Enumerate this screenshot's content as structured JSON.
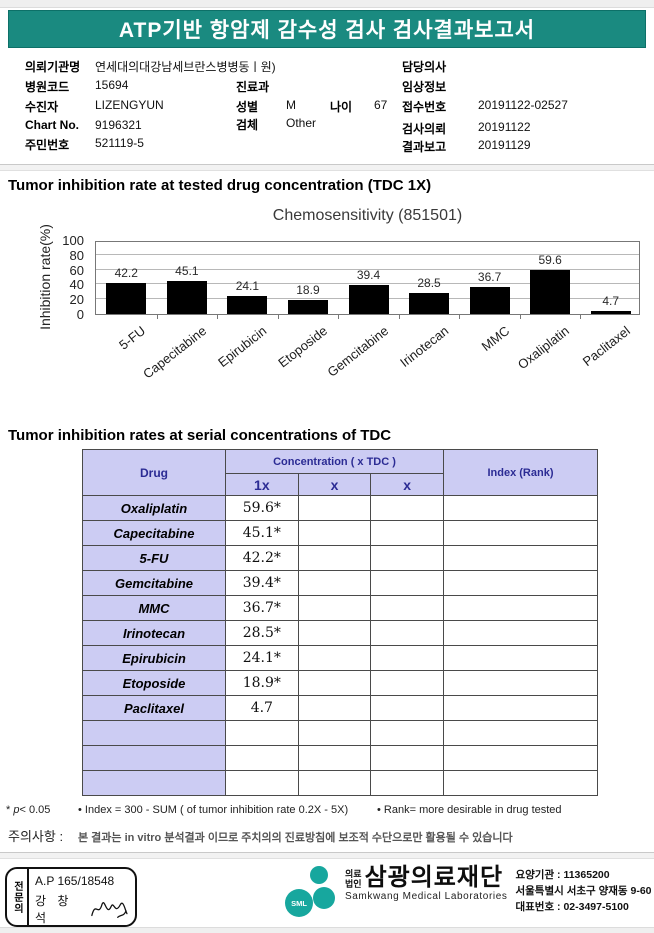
{
  "report": {
    "title": "ATP기반 항암제 감수성 검사 검사결과보고서"
  },
  "patient": {
    "labels": {
      "institution": "의뢰기관명",
      "hospital_code": "병원코드",
      "patient_name": "수진자",
      "chart_no": "Chart No.",
      "resident_no": "주민번호",
      "department": "진료과",
      "sex": "성별",
      "age": "나이",
      "specimen": "검체",
      "doctor": "담당의사",
      "clinical_info": "임상정보",
      "receipt_no": "접수번호",
      "request_date": "검사의뢰",
      "report_date": "결과보고"
    },
    "values": {
      "institution": "연세대의대강남세브란스병병동ㅣ원)",
      "hospital_code": "15694",
      "patient_name": "LIZENGYUN",
      "chart_no": "9196321",
      "resident_no": "521119-5",
      "department": "",
      "sex": "M",
      "age": "67",
      "specimen": "Other",
      "doctor": "",
      "clinical_info": "",
      "receipt_no": "20191122-02527",
      "request_date": "20191122",
      "report_date": "20191129"
    }
  },
  "section1": {
    "title": "Tumor inhibition rate at tested drug concentration (TDC 1X)"
  },
  "chart_data": {
    "type": "bar",
    "title": "Chemosensitivity (851501)",
    "ylabel": "Inhibition rate(%)",
    "xlabel": "",
    "categories": [
      "5-FU",
      "Capecitabine",
      "Epirubicin",
      "Etoposide",
      "Gemcitabine",
      "Irinotecan",
      "MMC",
      "Oxaliplatin",
      "Paclitaxel"
    ],
    "values": [
      42.2,
      45.1,
      24.1,
      18.9,
      39.4,
      28.5,
      36.7,
      59.6,
      4.7
    ],
    "yticks": [
      0,
      20,
      40,
      60,
      80,
      100
    ],
    "ylim": [
      0,
      100
    ],
    "grid": true,
    "bar_color": "#000000",
    "legend": "none"
  },
  "section2": {
    "title": "Tumor inhibition rates at serial concentrations of TDC",
    "table": {
      "col_drug": "Drug",
      "col_concentration": "Concentration ( x TDC )",
      "sub_cols": [
        "1x",
        "x",
        "x"
      ],
      "col_index": "Index (Rank)",
      "rows": [
        {
          "drug": "Oxaliplatin",
          "c1": "59.6*",
          "c2": "",
          "c3": "",
          "index": ""
        },
        {
          "drug": "Capecitabine",
          "c1": "45.1*",
          "c2": "",
          "c3": "",
          "index": ""
        },
        {
          "drug": "5-FU",
          "c1": "42.2*",
          "c2": "",
          "c3": "",
          "index": ""
        },
        {
          "drug": "Gemcitabine",
          "c1": "39.4*",
          "c2": "",
          "c3": "",
          "index": ""
        },
        {
          "drug": "MMC",
          "c1": "36.7*",
          "c2": "",
          "c3": "",
          "index": ""
        },
        {
          "drug": "Irinotecan",
          "c1": "28.5*",
          "c2": "",
          "c3": "",
          "index": ""
        },
        {
          "drug": "Epirubicin",
          "c1": "24.1*",
          "c2": "",
          "c3": "",
          "index": ""
        },
        {
          "drug": "Etoposide",
          "c1": "18.9*",
          "c2": "",
          "c3": "",
          "index": ""
        },
        {
          "drug": "Paclitaxel",
          "c1": "4.7",
          "c2": "",
          "c3": "",
          "index": ""
        },
        {
          "drug": "",
          "c1": "",
          "c2": "",
          "c3": "",
          "index": ""
        },
        {
          "drug": "",
          "c1": "",
          "c2": "",
          "c3": "",
          "index": ""
        },
        {
          "drug": "",
          "c1": "",
          "c2": "",
          "c3": "",
          "index": ""
        }
      ]
    }
  },
  "notes": {
    "p_star": "* ",
    "p_letter": "p",
    "p_rest": "< 0.05",
    "index_note": "• Index = 300 - SUM ( of tumor inhibition rate 0.2X  -  5X)",
    "rank_note": "• Rank= more desirable in drug tested",
    "caution_label": "주의사항 :",
    "caution_text": "본 결과는 in vitro 분석결과 이므로 주치의의 진료방침에 보조적 수단으로만 활용될 수 있습니다"
  },
  "footer": {
    "stamp": {
      "side_label": "전문의",
      "license": "A.P 165/18548",
      "doctor": "강 창 석"
    },
    "lab": {
      "sml": "SML",
      "org_type_line1": "의료",
      "org_type_line2": "법인",
      "name": "삼광의료재단",
      "name_en": "Samkwang Medical Laboratories",
      "info1": "요양기관 : 11365200",
      "info2": "서울특별시 서초구 양재동 9-60",
      "info3": "대표번호 : 02-3497-5100"
    }
  },
  "colors": {
    "banner_teal": "#1a8a80",
    "logo_teal": "#17a79e",
    "table_header_bg": "#ccccf3",
    "table_header_text": "#2b2b94",
    "bar": "#000000"
  }
}
